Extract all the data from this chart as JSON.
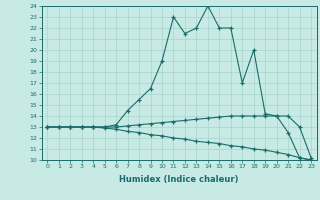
{
  "xlabel": "Humidex (Indice chaleur)",
  "ylabel": "",
  "xlim": [
    -0.5,
    23.5
  ],
  "ylim": [
    10,
    24
  ],
  "xticks": [
    0,
    1,
    2,
    3,
    4,
    5,
    6,
    7,
    8,
    9,
    10,
    11,
    12,
    13,
    14,
    15,
    16,
    17,
    18,
    19,
    20,
    21,
    22,
    23
  ],
  "yticks": [
    10,
    11,
    12,
    13,
    14,
    15,
    16,
    17,
    18,
    19,
    20,
    21,
    22,
    23,
    24
  ],
  "background_color": "#c8eae4",
  "grid_color": "#a8d4ce",
  "line_color": "#1a6b6b",
  "line1_x": [
    0,
    1,
    2,
    3,
    4,
    5,
    6,
    7,
    8,
    9,
    10,
    11,
    12,
    13,
    14,
    15,
    16,
    17,
    18,
    19,
    20,
    21,
    22,
    23
  ],
  "line1_y": [
    13,
    13,
    13,
    13,
    13,
    13,
    13.2,
    14.5,
    15.5,
    16.5,
    19.0,
    23.0,
    21.5,
    22.0,
    24.0,
    22.0,
    22.0,
    17.0,
    20.0,
    14.2,
    14.0,
    12.5,
    10.2,
    10.0
  ],
  "line2_x": [
    0,
    1,
    2,
    3,
    4,
    5,
    6,
    7,
    8,
    9,
    10,
    11,
    12,
    13,
    14,
    15,
    16,
    17,
    18,
    19,
    20,
    21,
    22,
    23
  ],
  "line2_y": [
    13,
    13,
    13,
    13,
    13,
    13,
    13.0,
    13.1,
    13.2,
    13.3,
    13.4,
    13.5,
    13.6,
    13.7,
    13.8,
    13.9,
    14.0,
    14.0,
    14.0,
    14.0,
    14.0,
    14.0,
    13.0,
    10.2
  ],
  "line3_x": [
    0,
    1,
    2,
    3,
    4,
    5,
    6,
    7,
    8,
    9,
    10,
    11,
    12,
    13,
    14,
    15,
    16,
    17,
    18,
    19,
    20,
    21,
    22,
    23
  ],
  "line3_y": [
    13,
    13,
    13,
    13,
    13,
    12.9,
    12.8,
    12.6,
    12.5,
    12.3,
    12.2,
    12.0,
    11.9,
    11.7,
    11.6,
    11.5,
    11.3,
    11.2,
    11.0,
    10.9,
    10.7,
    10.5,
    10.2,
    10.0
  ]
}
